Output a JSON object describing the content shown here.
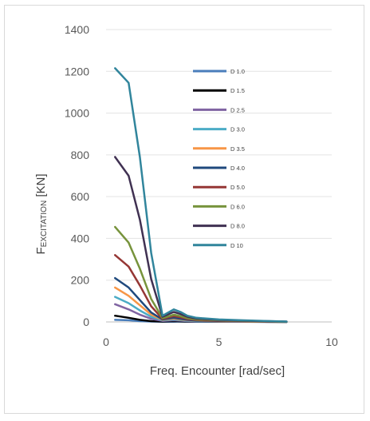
{
  "chart_data": {
    "type": "line",
    "title": "",
    "xlabel": "Freq. Encounter [rad/sec]",
    "ylabel": {
      "main": "F",
      "sub": "EXCITATION",
      "unit": " [KN]"
    },
    "xlim": [
      0,
      10
    ],
    "ylim": [
      0,
      1400
    ],
    "xticks": [
      "0",
      "5",
      "10"
    ],
    "yticks": [
      "0",
      "200",
      "400",
      "600",
      "800",
      "1000",
      "1200",
      "1400"
    ],
    "grid": true,
    "legend_position": "top-right",
    "x": [
      0.4,
      1.0,
      1.5,
      2.0,
      2.5,
      3.0,
      3.3,
      3.6,
      4.0,
      5.0,
      6.0,
      7.0,
      8.0
    ],
    "series": [
      {
        "name": "D 1.0",
        "color": "#4a7ebb",
        "values": [
          10,
          8,
          4,
          2,
          1,
          1,
          2,
          1,
          1,
          1,
          1,
          0,
          0
        ]
      },
      {
        "name": "D 1.5",
        "color": "#000000",
        "values": [
          30,
          20,
          10,
          4,
          2,
          4,
          3,
          2,
          2,
          1,
          1,
          1,
          0
        ]
      },
      {
        "name": "D 2.5",
        "color": "#8064a2",
        "values": [
          85,
          60,
          35,
          15,
          5,
          8,
          6,
          4,
          3,
          2,
          1,
          1,
          0
        ]
      },
      {
        "name": "D 3.0",
        "color": "#4bacc6",
        "values": [
          120,
          90,
          55,
          25,
          8,
          12,
          9,
          6,
          4,
          3,
          2,
          1,
          0
        ]
      },
      {
        "name": "D 3.5",
        "color": "#f79646",
        "values": [
          165,
          125,
          80,
          35,
          10,
          16,
          12,
          8,
          6,
          4,
          2,
          1,
          0
        ]
      },
      {
        "name": "D 4.0",
        "color": "#1f497d",
        "values": [
          210,
          165,
          105,
          45,
          12,
          20,
          15,
          10,
          7,
          5,
          3,
          2,
          0
        ]
      },
      {
        "name": "D 5.0",
        "color": "#953735",
        "values": [
          320,
          265,
          175,
          75,
          15,
          28,
          22,
          14,
          9,
          6,
          4,
          2,
          1
        ]
      },
      {
        "name": "D 6.0",
        "color": "#77933c",
        "values": [
          455,
          380,
          255,
          110,
          18,
          35,
          28,
          18,
          12,
          8,
          5,
          3,
          1
        ]
      },
      {
        "name": "D 8.0",
        "color": "#403152",
        "values": [
          790,
          700,
          490,
          205,
          25,
          48,
          38,
          25,
          16,
          10,
          6,
          4,
          2
        ]
      },
      {
        "name": "D 10",
        "color": "#31859c",
        "values": [
          1215,
          1145,
          790,
          330,
          30,
          60,
          48,
          30,
          20,
          12,
          8,
          5,
          2
        ]
      }
    ]
  }
}
